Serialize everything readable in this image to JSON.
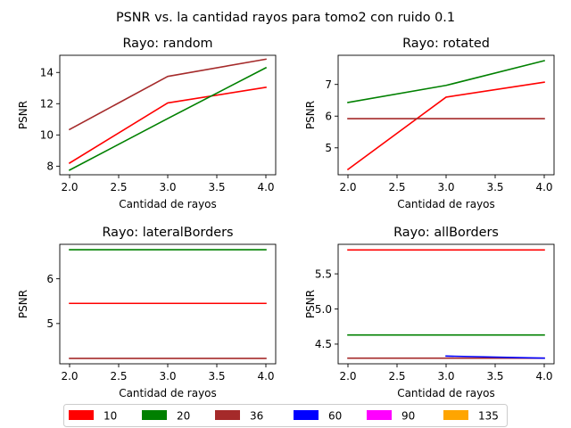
{
  "figure": {
    "suptitle": "PSNR vs. la cantidad rayos para tomo2 con ruido 0.1"
  },
  "legend": {
    "placement": "bottom",
    "entries": [
      {
        "label": "10",
        "color": "#ff0000"
      },
      {
        "label": "20",
        "color": "#008000"
      },
      {
        "label": "36",
        "color": "#a52a2a"
      },
      {
        "label": "60",
        "color": "#0000ff"
      },
      {
        "label": "90",
        "color": "#ff00ff"
      },
      {
        "label": "135",
        "color": "#ffa500"
      }
    ]
  },
  "chart_data": [
    {
      "type": "line",
      "title": "Rayo: random",
      "xlabel": "Cantidad de rayos",
      "ylabel": "PSNR",
      "xlim": [
        1.9,
        4.1
      ],
      "ylim": [
        7.45,
        15.1
      ],
      "xticks": [
        2.0,
        2.5,
        3.0,
        3.5,
        4.0
      ],
      "xtick_labels": [
        "2.0",
        "2.5",
        "3.0",
        "3.5",
        "4.0"
      ],
      "yticks": [
        8,
        10,
        12,
        14
      ],
      "ytick_labels": [
        "8",
        "10",
        "12",
        "14"
      ],
      "grid": false,
      "series": [
        {
          "name": "10",
          "color": "#ff0000",
          "x": [
            2,
            3,
            4
          ],
          "y": [
            8.2,
            12.05,
            13.05
          ]
        },
        {
          "name": "20",
          "color": "#008000",
          "x": [
            2,
            3,
            4
          ],
          "y": [
            7.75,
            11.05,
            14.3
          ]
        },
        {
          "name": "36",
          "color": "#a52a2a",
          "x": [
            2,
            3,
            4
          ],
          "y": [
            10.35,
            13.75,
            14.85
          ]
        }
      ]
    },
    {
      "type": "line",
      "title": "Rayo: rotated",
      "xlabel": "Cantidad de rayos",
      "ylabel": "PSNR",
      "xlim": [
        1.9,
        4.1
      ],
      "ylim": [
        4.15,
        7.92
      ],
      "xticks": [
        2.0,
        2.5,
        3.0,
        3.5,
        4.0
      ],
      "xtick_labels": [
        "2.0",
        "2.5",
        "3.0",
        "3.5",
        "4.0"
      ],
      "yticks": [
        5,
        6,
        7
      ],
      "ytick_labels": [
        "5",
        "6",
        "7"
      ],
      "grid": false,
      "series": [
        {
          "name": "10",
          "color": "#ff0000",
          "x": [
            2,
            3,
            4
          ],
          "y": [
            4.32,
            6.6,
            7.07
          ]
        },
        {
          "name": "20",
          "color": "#008000",
          "x": [
            2,
            3,
            4
          ],
          "y": [
            6.43,
            6.97,
            7.75
          ]
        },
        {
          "name": "36",
          "color": "#a52a2a",
          "x": [
            2,
            3,
            4
          ],
          "y": [
            5.92,
            5.92,
            5.92
          ]
        }
      ]
    },
    {
      "type": "line",
      "title": "Rayo: lateralBorders",
      "xlabel": "Cantidad de rayos",
      "ylabel": "PSNR",
      "xlim": [
        1.9,
        4.1
      ],
      "ylim": [
        4.1,
        6.77
      ],
      "xticks": [
        2.0,
        2.5,
        3.0,
        3.5,
        4.0
      ],
      "xtick_labels": [
        "2.0",
        "2.5",
        "3.0",
        "3.5",
        "4.0"
      ],
      "yticks": [
        5,
        6
      ],
      "ytick_labels": [
        "5",
        "6"
      ],
      "grid": false,
      "series": [
        {
          "name": "10",
          "color": "#ff0000",
          "x": [
            2,
            3,
            4
          ],
          "y": [
            5.45,
            5.45,
            5.45
          ]
        },
        {
          "name": "20",
          "color": "#008000",
          "x": [
            2,
            3,
            4
          ],
          "y": [
            6.65,
            6.65,
            6.65
          ]
        },
        {
          "name": "36",
          "color": "#a52a2a",
          "x": [
            2,
            3,
            4
          ],
          "y": [
            4.22,
            4.22,
            4.22
          ]
        }
      ]
    },
    {
      "type": "line",
      "title": "Rayo: allBorders",
      "xlabel": "Cantidad de rayos",
      "ylabel": "PSNR",
      "xlim": [
        1.9,
        4.1
      ],
      "ylim": [
        4.22,
        5.92
      ],
      "xticks": [
        2.0,
        2.5,
        3.0,
        3.5,
        4.0
      ],
      "xtick_labels": [
        "2.0",
        "2.5",
        "3.0",
        "3.5",
        "4.0"
      ],
      "yticks": [
        4.5,
        5.0,
        5.5
      ],
      "ytick_labels": [
        "4.5",
        "5.0",
        "5.5"
      ],
      "grid": false,
      "series": [
        {
          "name": "10",
          "color": "#ff0000",
          "x": [
            2,
            3,
            4
          ],
          "y": [
            5.84,
            5.84,
            5.84
          ]
        },
        {
          "name": "20",
          "color": "#008000",
          "x": [
            2,
            3,
            4
          ],
          "y": [
            4.63,
            4.63,
            4.63
          ]
        },
        {
          "name": "36",
          "color": "#a52a2a",
          "x": [
            2,
            3,
            4
          ],
          "y": [
            4.3,
            4.3,
            4.3
          ]
        },
        {
          "name": "60",
          "color": "#0000ff",
          "x": [
            3,
            4
          ],
          "y": [
            4.33,
            4.3
          ]
        }
      ]
    }
  ]
}
